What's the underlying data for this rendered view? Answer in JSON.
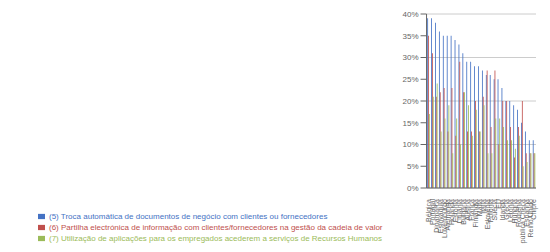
{
  "chart_data": {
    "type": "bar",
    "categories": [
      "Bélgica",
      "Portugal",
      "Dinamarca",
      "Eslováquia",
      "Luxemburgo",
      "Alemanha",
      "Holanda",
      "Estónia",
      "Lituânia",
      "Bulgária",
      "Áustria",
      "França",
      "Finlândia",
      "Malta",
      "Itália",
      "Eslovénia",
      "Polónia",
      "Suécia",
      "EU",
      "Irlanda",
      "Grécia",
      "Letónia",
      "Hungria",
      "Roménia",
      "República Checa",
      "Espanha",
      "Reino Unido",
      "Chipre"
    ],
    "series": [
      {
        "name": "(5) Troca automática de documentos de negócio com clientes ou fornecedores",
        "color": "#4472C4",
        "values": [
          39,
          39,
          38,
          36,
          35,
          35,
          35,
          34,
          33,
          31,
          29,
          29,
          28,
          28,
          27,
          26,
          26,
          25,
          25,
          23,
          20,
          20,
          19,
          18,
          15,
          13,
          11,
          11
        ]
      },
      {
        "name": "(6) Partilha electrónica de informação com clientes/fornecedores na gestão da cadeia de valor",
        "color": "#C0504D",
        "values": [
          35,
          31,
          21,
          22,
          23,
          13,
          23,
          12,
          29,
          22,
          13,
          13,
          20,
          13,
          21,
          27,
          14,
          27,
          10,
          20,
          20,
          14,
          7,
          14,
          20,
          8,
          8,
          8
        ]
      },
      {
        "name": "(7) Utilização de aplicações para os empregados acederem a serviços de Recursos Humanos",
        "color": "#9BBB59",
        "values": [
          17,
          21,
          24,
          13,
          16,
          19,
          8,
          16,
          10,
          22,
          19,
          12,
          18,
          13,
          19,
          8,
          8,
          16,
          16,
          14,
          11,
          11,
          9,
          12,
          5,
          6,
          8,
          8
        ]
      }
    ],
    "ylim": [
      0,
      40
    ],
    "yticks": [
      {
        "value": 0,
        "label": "0%"
      },
      {
        "value": 5,
        "label": "5%"
      },
      {
        "value": 10,
        "label": "10%"
      },
      {
        "value": 15,
        "label": "15%"
      },
      {
        "value": 20,
        "label": "20%"
      },
      {
        "value": 25,
        "label": "25%"
      },
      {
        "value": 30,
        "label": "30%"
      },
      {
        "value": 35,
        "label": "35%"
      },
      {
        "value": 40,
        "label": "40%"
      }
    ],
    "grid": true
  }
}
